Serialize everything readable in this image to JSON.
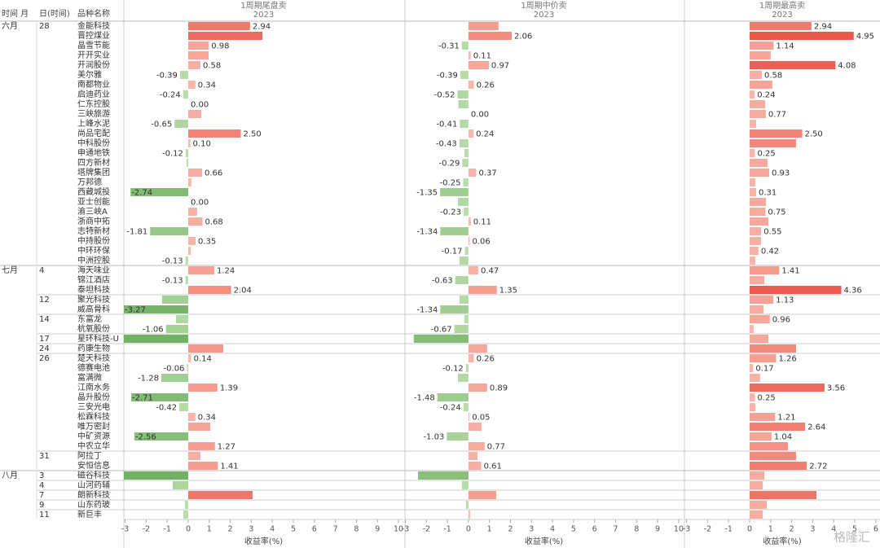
{
  "table": {
    "headers": [
      "时间 月",
      "日(时间)",
      "品种名称"
    ],
    "months": [
      "六月",
      null,
      null,
      null,
      null,
      null,
      null,
      null,
      null,
      null,
      null,
      null,
      null,
      null,
      null,
      null,
      null,
      null,
      null,
      null,
      null,
      null,
      null,
      null,
      null,
      "七月",
      null,
      null,
      null,
      null,
      null,
      null,
      null,
      null,
      null,
      null,
      null,
      null,
      null,
      null,
      null,
      null,
      null,
      null,
      null,
      null,
      "八月",
      null,
      null,
      null,
      null
    ],
    "days": [
      "28",
      null,
      null,
      null,
      null,
      null,
      null,
      null,
      null,
      null,
      null,
      null,
      null,
      null,
      null,
      null,
      null,
      null,
      null,
      null,
      null,
      null,
      null,
      null,
      null,
      "4",
      null,
      null,
      "12",
      null,
      "14",
      null,
      "17",
      "24",
      "26",
      null,
      null,
      null,
      null,
      null,
      null,
      null,
      null,
      null,
      "31",
      null,
      "3",
      "4",
      "7",
      "9",
      "11"
    ],
    "names": [
      "金能科技",
      "晋控煤业",
      "晶雪节能",
      "开开实业",
      "开润股份",
      "美尔雅",
      "南都物业",
      "启迪药业",
      "仁东控股",
      "三峡旅游",
      "上峰水泥",
      "尚品宅配",
      "中科股份",
      "申通地铁",
      "四方新材",
      "塔牌集团",
      "万邦德",
      "西藏城投",
      "亚士创能",
      "渝三峡A",
      "浙商中拓",
      "志特新材",
      "中持股份",
      "中环环保",
      "中洲控股",
      "海天味业",
      "锦江酒店",
      "泰坦科技",
      "聚光科技",
      "威高骨科",
      "东富龙",
      "杭氧股份",
      "星环科技-U",
      "药康生物",
      "楚天科技",
      "德赛电池",
      "富满微",
      "江南水务",
      "晶升股份",
      "三安光电",
      "松霖科技",
      "唯万密封",
      "中矿资源",
      "中农立华",
      "阿拉丁",
      "安恒信息",
      "磁谷科技",
      "山河药辅",
      "朗新科技",
      "山东药玻",
      "新巨丰"
    ]
  },
  "watermark": "格隆汇",
  "chart_data": [
    {
      "type": "bar",
      "orientation": "horizontal",
      "title": "1周期尾盘卖",
      "subtitle": "2023",
      "x_label": "收益率(%)",
      "xlim": [
        -3.06,
        10.23
      ],
      "xticks": [
        -3,
        -2,
        -1,
        0,
        1,
        2,
        3,
        4,
        5,
        6,
        7,
        8,
        9,
        10
      ],
      "colors": {
        "positive": [
          "#f9bcb0",
          "#e9564a"
        ],
        "negative": [
          "#bde0ae",
          "#5ca24f"
        ]
      },
      "values": [
        2.94,
        3.53,
        0.98,
        0.97,
        0.58,
        -0.39,
        0.34,
        -0.24,
        0,
        0.62,
        -0.65,
        2.5,
        0.1,
        -0.12,
        -0.08,
        0.66,
        0.15,
        -2.74,
        0,
        0.42,
        0.68,
        -1.81,
        0.35,
        0.12,
        -0.13,
        1.24,
        -0.13,
        2.04,
        -1.24,
        -3.27,
        -0.58,
        -1.06,
        -3.5,
        1.67,
        0.14,
        -0.06,
        -1.28,
        1.39,
        -2.71,
        -0.42,
        0.34,
        1.05,
        -2.56,
        1.27,
        0.58,
        1.41,
        -3.5,
        -0.74,
        3.06,
        -0.16,
        -0.23
      ],
      "value_labels": [
        "2.94",
        null,
        "0.98",
        null,
        "0.58",
        "-0.39",
        "0.34",
        "-0.24",
        "0.00",
        null,
        "-0.65",
        "2.50",
        "0.10",
        "-0.12",
        null,
        "0.66",
        null,
        "-2.74",
        "0.00",
        null,
        "0.68",
        "-1.81",
        "0.35",
        null,
        "-0.13",
        "1.24",
        "-0.13",
        "2.04",
        null,
        "-3.27",
        null,
        "-1.06",
        null,
        null,
        "0.14",
        "-0.06",
        "-1.28",
        "1.39",
        "-2.71",
        "-0.42",
        "0.34",
        null,
        "-2.56",
        "1.27",
        null,
        "1.41",
        null,
        null,
        null,
        null,
        null
      ]
    },
    {
      "type": "bar",
      "orientation": "horizontal",
      "title": "1周期中价卖",
      "subtitle": "2023",
      "x_label": "收益率(%)",
      "xlim": [
        -3.02,
        10.2
      ],
      "xticks": [
        -3,
        -2,
        -1,
        0,
        1,
        2,
        3,
        4,
        5,
        6,
        7,
        8,
        9,
        10
      ],
      "colors": {
        "positive": [
          "#f9bcb0",
          "#e9564a"
        ],
        "negative": [
          "#bde0ae",
          "#5ca24f"
        ]
      },
      "values": [
        1.43,
        2.06,
        -0.31,
        0.11,
        0.97,
        -0.39,
        0.26,
        -0.52,
        -0.48,
        0,
        -0.41,
        0.24,
        -0.43,
        -0.19,
        -0.29,
        0.37,
        -0.25,
        -1.35,
        -0.5,
        -0.23,
        0.11,
        -1.34,
        0.06,
        -0.17,
        -0.43,
        0.47,
        -0.63,
        1.35,
        -0.43,
        -1.34,
        -0.19,
        -0.67,
        -2.6,
        0.89,
        0.26,
        -0.12,
        -0.5,
        0.89,
        -1.48,
        -0.24,
        0.05,
        0.62,
        -1.03,
        0.77,
        0.43,
        0.61,
        -2.4,
        -0.31,
        1.32,
        -0.12,
        0.08
      ],
      "value_labels": [
        null,
        "2.06",
        "-0.31",
        "0.11",
        "0.97",
        "-0.39",
        "0.26",
        "-0.52",
        null,
        "0.00",
        "-0.41",
        "0.24",
        "-0.43",
        null,
        "-0.29",
        "0.37",
        "-0.25",
        "-1.35",
        null,
        "-0.23",
        "0.11",
        "-1.34",
        "0.06",
        "-0.17",
        null,
        "0.47",
        "-0.63",
        "1.35",
        null,
        "-1.34",
        null,
        "-0.67",
        null,
        null,
        "0.26",
        "-0.12",
        null,
        "0.89",
        "-1.48",
        "-0.24",
        "0.05",
        null,
        "-1.03",
        "0.77",
        null,
        "0.61",
        null,
        null,
        null,
        null,
        null
      ]
    },
    {
      "type": "bar",
      "orientation": "horizontal",
      "title": "1周期最高卖",
      "subtitle": "2023",
      "x_label": "收益率(%)",
      "xlim": [
        -3.1,
        6.2
      ],
      "xticks": [
        -3,
        -2,
        -1,
        0,
        1,
        2,
        3,
        4,
        5,
        6
      ],
      "colors": {
        "positive": [
          "#f9bcb0",
          "#e9564a"
        ],
        "negative": [
          "#bde0ae",
          "#5ca24f"
        ]
      },
      "values": [
        2.94,
        4.95,
        1.14,
        1.0,
        4.08,
        0.58,
        1.08,
        0.24,
        0.74,
        0.77,
        0.31,
        2.5,
        2.21,
        0.25,
        0.85,
        0.93,
        0.27,
        0.31,
        0.78,
        0.75,
        0.89,
        0.55,
        0.54,
        0.42,
        0.27,
        1.41,
        0.7,
        4.36,
        1.13,
        0.66,
        0.96,
        0.19,
        0.89,
        2.21,
        1.26,
        0.17,
        0.5,
        3.56,
        0.25,
        0.27,
        1.21,
        2.64,
        1.04,
        1.82,
        2.21,
        2.72,
        0.7,
        0.62,
        3.18,
        0.81,
        0.62
      ],
      "value_labels": [
        "2.94",
        "4.95",
        "1.14",
        null,
        "4.08",
        "0.58",
        null,
        "0.24",
        null,
        "0.77",
        null,
        "2.50",
        null,
        "0.25",
        null,
        "0.93",
        null,
        "0.31",
        null,
        "0.75",
        null,
        "0.55",
        null,
        "0.42",
        null,
        "1.41",
        null,
        "4.36",
        "1.13",
        null,
        "0.96",
        null,
        null,
        null,
        "1.26",
        "0.17",
        null,
        "3.56",
        "0.25",
        null,
        "1.21",
        "2.64",
        "1.04",
        null,
        null,
        "2.72",
        null,
        null,
        null,
        null,
        null
      ]
    }
  ]
}
